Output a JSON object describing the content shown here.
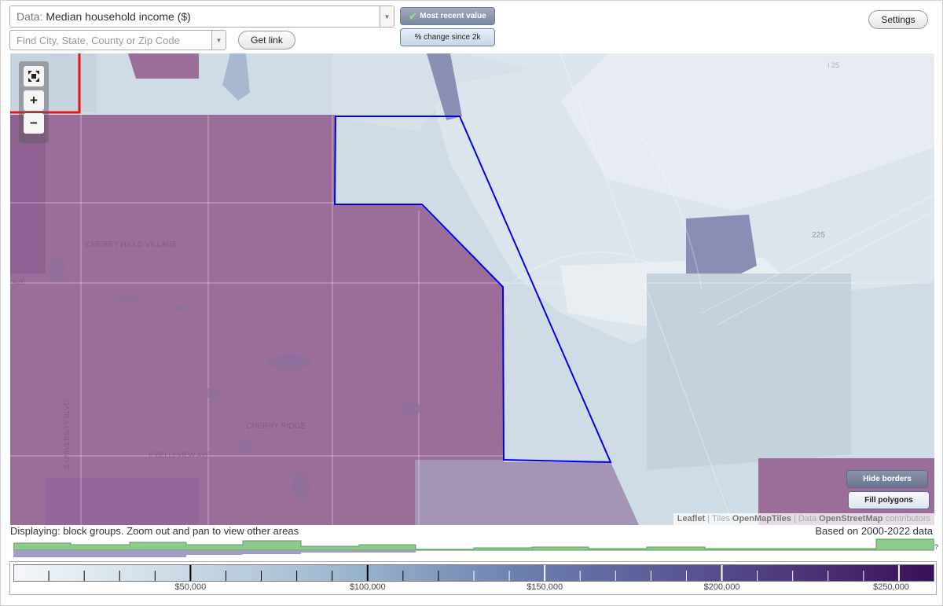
{
  "toolbar": {
    "data_label": "Data:",
    "data_value": "Median household income ($)",
    "search_placeholder": "Find City, State, County or Zip Code",
    "get_link": "Get link",
    "most_recent": "Most recent value",
    "pct_change": "% change since 2k",
    "settings": "Settings"
  },
  "map": {
    "labels": [
      "CHERRY HILLS VILLAGE",
      "CHERRY RIDGE",
      "E BELLEVIEW AVE",
      "S UNIVERSITY BLVD",
      "AVE",
      "225",
      "I 25"
    ],
    "hide_borders": "Hide borders",
    "fill_polygons": "Fill polygons",
    "attribution": {
      "leaflet": "Leaflet",
      "tiles_prefix": "| Tiles",
      "tiles": "OpenMapTiles",
      "data_prefix": "| Data",
      "osm": "OpenStreetMap",
      "contributors": "contributors"
    },
    "colors": {
      "high_income": "#9b6e9a",
      "border_selected": "#0000ee",
      "border_city": "#ee1111"
    }
  },
  "status": {
    "displaying": "Displaying: block groups. Zoom out and pan to view other areas",
    "based_on": "Based on 2000-2022 data",
    "help": "?"
  },
  "legend": {
    "labels": [
      "$50,000",
      "$100,000",
      "$150,000",
      "$200,000",
      "$250,000"
    ],
    "min_value": 0,
    "max_value": 260000,
    "label_values": [
      50000,
      100000,
      150000,
      200000,
      250000
    ]
  }
}
